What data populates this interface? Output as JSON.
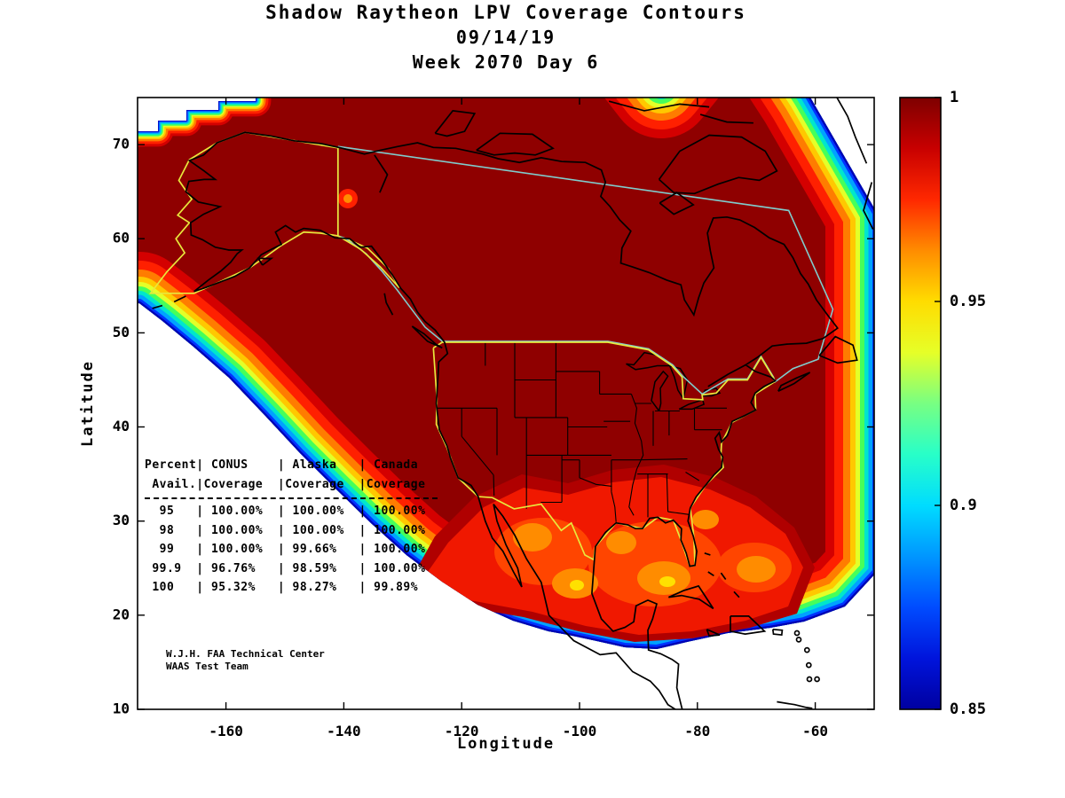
{
  "figure": {
    "title": "Shadow Raytheon LPV Coverage Contours",
    "date": "09/14/19",
    "week_day": "Week 2070 Day 6"
  },
  "axes": {
    "xlabel": "Longitude",
    "ylabel": "Latitude",
    "x_ticks": [
      "-160",
      "-140",
      "-120",
      "-100",
      "-80",
      "-60"
    ],
    "x_tick_values": [
      -160,
      -140,
      -120,
      -100,
      -80,
      -60
    ],
    "y_ticks": [
      "10",
      "20",
      "30",
      "40",
      "50",
      "60",
      "70"
    ],
    "y_tick_values": [
      10,
      20,
      30,
      40,
      50,
      60,
      70
    ],
    "xlim": [
      -175,
      -50
    ],
    "ylim": [
      10,
      75
    ]
  },
  "colorbar": {
    "tick_labels": [
      "1",
      "0.95",
      "0.9",
      "0.85"
    ],
    "tick_values": [
      1,
      0.95,
      0.9,
      0.85
    ],
    "value_range": [
      0.85,
      1
    ],
    "gradient_top_to_bottom": [
      "#7e0000",
      "#c80000",
      "#ff2800",
      "#ff8c00",
      "#ffdc00",
      "#e6ff28",
      "#78ff82",
      "#28ffc8",
      "#00dcff",
      "#0096ff",
      "#004cff",
      "#0014dc",
      "#0000a0"
    ]
  },
  "coverage_table": {
    "lines": [
      "Percent| CONUS    | Alaska   | Canada",
      " Avail.|Coverage  |Coverage  |Coverage",
      "  95   | 100.00%  | 100.00%  | 100.00%",
      "  98   | 100.00%  | 100.00%  | 100.00%",
      "  99   | 100.00%  | 99.66%   | 100.00%",
      " 99.9  | 96.76%   | 98.59%   | 100.00%",
      " 100   | 95.32%   | 98.27%   | 99.89%"
    ]
  },
  "credit": {
    "line1": "W.J.H. FAA Technical Center",
    "line2": "WAAS Test Team"
  },
  "map_colors": {
    "interior": "#8f0000",
    "conus_alaska_boundary": "#e8e83c",
    "canada_boundary": "#80cccc",
    "coastline": "#000000"
  },
  "chart_data": {
    "type": "heatmap",
    "title": "Shadow Raytheon LPV Coverage Contours",
    "subtitle": [
      "09/14/19",
      "Week 2070 Day 6"
    ],
    "xlabel": "Longitude",
    "ylabel": "Latitude",
    "xlim": [
      -175,
      -50
    ],
    "ylim": [
      10,
      75
    ],
    "x_ticks": [
      -160,
      -140,
      -120,
      -100,
      -80,
      -60
    ],
    "y_ticks": [
      10,
      20,
      30,
      40,
      50,
      60,
      70
    ],
    "colorbar": {
      "range": [
        0.85,
        1
      ],
      "ticks": [
        1,
        0.95,
        0.9,
        0.85
      ],
      "colormap": "jet",
      "orientation": "vertical",
      "position": "right"
    },
    "description": "Filled contour map of WAAS LPV coverage availability over North America. Interior dark red = availability 1.0; concentric jet-colormap bands fall to 0.85 (blue) at the coverage edge along the southwest, south, east and far-northeast boundaries.",
    "coverage_stats": {
      "columns": [
        "Percent Avail.",
        "CONUS Coverage",
        "Alaska Coverage",
        "Canada Coverage"
      ],
      "rows": [
        [
          "95",
          "100.00%",
          "100.00%",
          "100.00%"
        ],
        [
          "98",
          "100.00%",
          "100.00%",
          "100.00%"
        ],
        [
          "99",
          "100.00%",
          "99.66%",
          "100.00%"
        ],
        [
          "99.9",
          "96.76%",
          "98.59%",
          "100.00%"
        ],
        [
          "100",
          "95.32%",
          "98.27%",
          "99.89%"
        ]
      ]
    },
    "annotations": [
      "W.J.H. FAA Technical Center",
      "WAAS Test Team"
    ],
    "regions_outlined": [
      "CONUS (yellow)",
      "Alaska (yellow)",
      "Canada (teal)"
    ]
  }
}
